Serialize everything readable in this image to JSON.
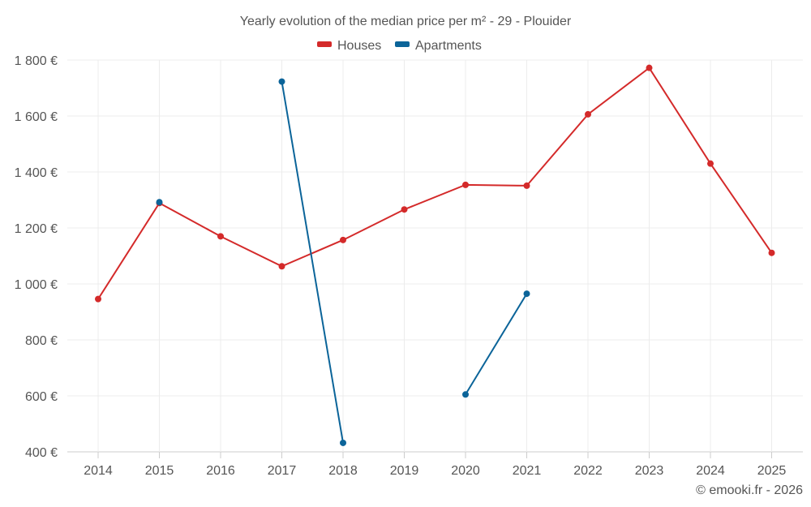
{
  "colors": {
    "houses": "#d42a2a",
    "apartments": "#0b6499",
    "grid": "#ececec",
    "text": "#555555"
  },
  "chart_data": {
    "type": "line",
    "title": "Yearly evolution of the median price per m² - 29 - Plouider",
    "legend_position": "top-center",
    "x": [
      "2014",
      "2015",
      "2016",
      "2017",
      "2018",
      "2019",
      "2020",
      "2021",
      "2022",
      "2023",
      "2024",
      "2025"
    ],
    "y_ticks": [
      "400 €",
      "600 €",
      "800 €",
      "1 000 €",
      "1 200 €",
      "1 400 €",
      "1 600 €",
      "1 800 €"
    ],
    "ylim": [
      400,
      1800
    ],
    "grid": true,
    "series": [
      {
        "name": "Houses",
        "color_key": "houses",
        "values": [
          946,
          1289,
          1170,
          1063,
          1157,
          1266,
          1354,
          1351,
          1606,
          1772,
          1430,
          1111
        ]
      },
      {
        "name": "Apartments",
        "color_key": "apartments",
        "values": [
          null,
          1292,
          null,
          1723,
          432,
          null,
          605,
          965,
          null,
          null,
          null,
          null
        ]
      }
    ],
    "credit": "© emooki.fr - 2026"
  }
}
